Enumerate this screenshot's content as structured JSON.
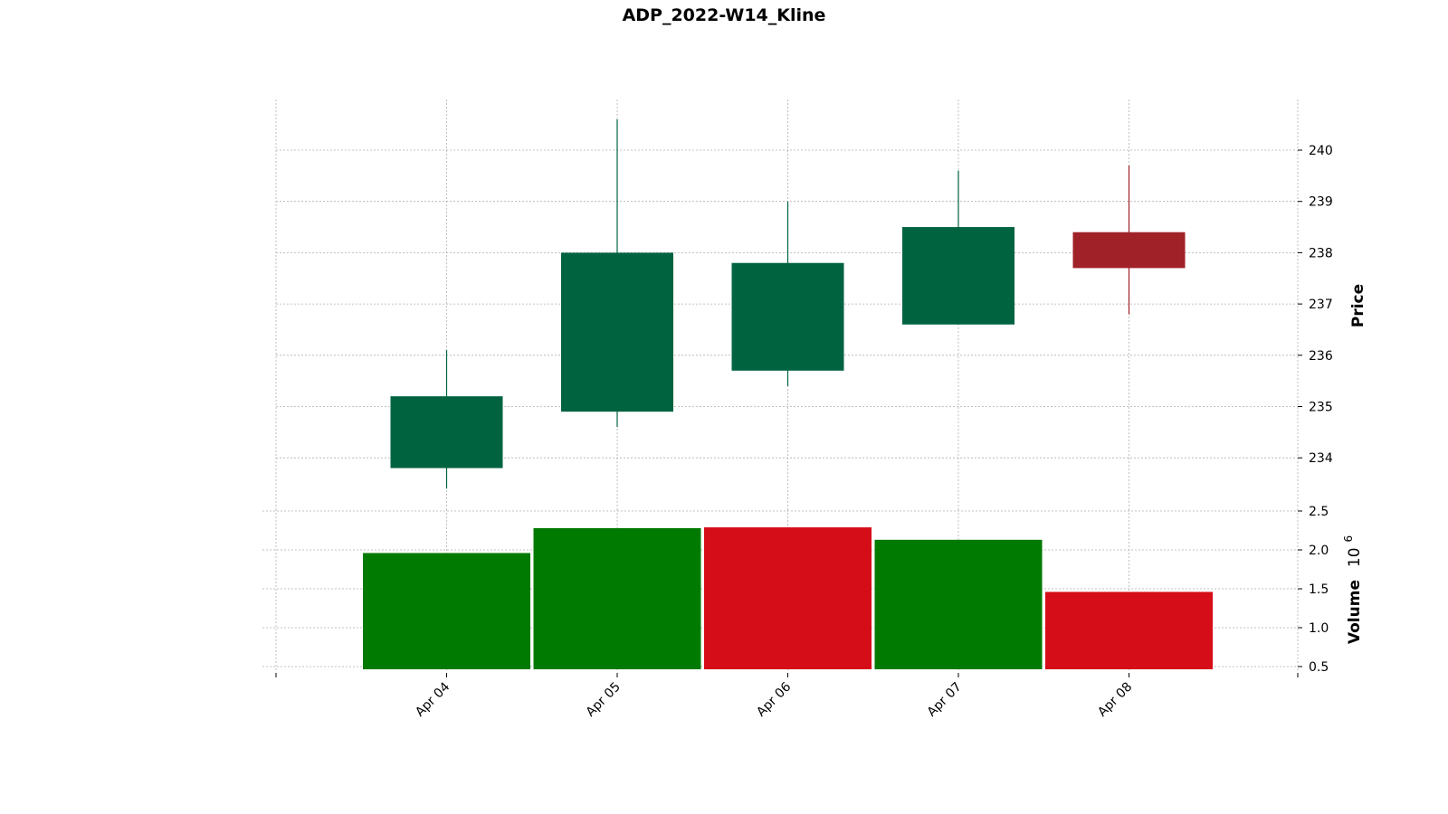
{
  "chart_data": {
    "type": "candlestick",
    "title": "ADP_2022-W14_Kline",
    "categories": [
      "Apr 04",
      "Apr 05",
      "Apr 06",
      "Apr 07",
      "Apr 08"
    ],
    "ohlc": [
      {
        "date": "Apr 04",
        "open": 233.8,
        "high": 236.1,
        "low": 233.4,
        "close": 235.2
      },
      {
        "date": "Apr 05",
        "open": 234.9,
        "high": 240.6,
        "low": 234.6,
        "close": 238.0
      },
      {
        "date": "Apr 06",
        "open": 235.7,
        "high": 239.0,
        "low": 235.4,
        "close": 237.8
      },
      {
        "date": "Apr 07",
        "open": 236.6,
        "high": 239.6,
        "low": 236.6,
        "close": 238.5
      },
      {
        "date": "Apr 08",
        "open": 238.4,
        "high": 239.7,
        "low": 236.8,
        "close": 237.7
      }
    ],
    "volume": [
      {
        "date": "Apr 04",
        "value": 1.96,
        "direction": "up"
      },
      {
        "date": "Apr 05",
        "value": 2.28,
        "direction": "up"
      },
      {
        "date": "Apr 06",
        "value": 2.29,
        "direction": "down"
      },
      {
        "date": "Apr 07",
        "value": 2.13,
        "direction": "up"
      },
      {
        "date": "Apr 08",
        "value": 1.46,
        "direction": "down"
      }
    ],
    "price_axis": {
      "label": "Price",
      "ticks": [
        234,
        235,
        236,
        237,
        238,
        239,
        240
      ],
      "range": [
        233.0,
        241.0
      ]
    },
    "volume_axis": {
      "label": "Volume",
      "multiplier": "10",
      "exponent": "6",
      "ticks": [
        "0.5",
        "1.0",
        "1.5",
        "2.0",
        "2.5"
      ],
      "range": [
        0.45,
        2.5
      ]
    },
    "grid": true,
    "colors": {
      "candle_up": "#006340",
      "candle_down": "#a02128",
      "volume_up": "#007a00",
      "volume_down": "#d50d18"
    }
  }
}
